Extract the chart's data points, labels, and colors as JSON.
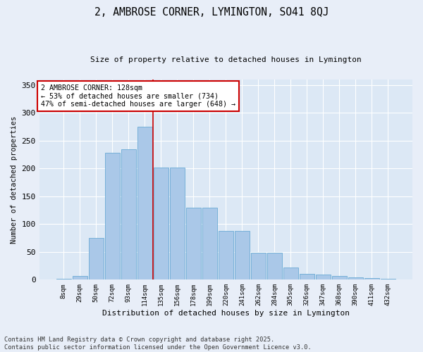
{
  "title": "2, AMBROSE CORNER, LYMINGTON, SO41 8QJ",
  "subtitle": "Size of property relative to detached houses in Lymington",
  "xlabel": "Distribution of detached houses by size in Lymington",
  "ylabel": "Number of detached properties",
  "bar_color": "#aac8e8",
  "bar_edge_color": "#6aaad4",
  "bg_color": "#dce8f5",
  "fig_color": "#e8eef8",
  "grid_color": "#ffffff",
  "categories": [
    "8sqm",
    "29sqm",
    "50sqm",
    "72sqm",
    "93sqm",
    "114sqm",
    "135sqm",
    "156sqm",
    "178sqm",
    "199sqm",
    "220sqm",
    "241sqm",
    "262sqm",
    "284sqm",
    "305sqm",
    "326sqm",
    "347sqm",
    "368sqm",
    "390sqm",
    "411sqm",
    "432sqm"
  ],
  "values": [
    2,
    7,
    75,
    228,
    235,
    275,
    202,
    202,
    130,
    130,
    88,
    88,
    48,
    48,
    22,
    11,
    9,
    7,
    4,
    3,
    2
  ],
  "property_line_x": 6.0,
  "annotation_text": "2 AMBROSE CORNER: 128sqm\n← 53% of detached houses are smaller (734)\n47% of semi-detached houses are larger (648) →",
  "annotation_box_color": "#ffffff",
  "annotation_box_edge": "#cc0000",
  "property_line_color": "#cc0000",
  "ylim": [
    0,
    360
  ],
  "yticks": [
    0,
    50,
    100,
    150,
    200,
    250,
    300,
    350
  ],
  "footer": "Contains HM Land Registry data © Crown copyright and database right 2025.\nContains public sector information licensed under the Open Government Licence v3.0."
}
